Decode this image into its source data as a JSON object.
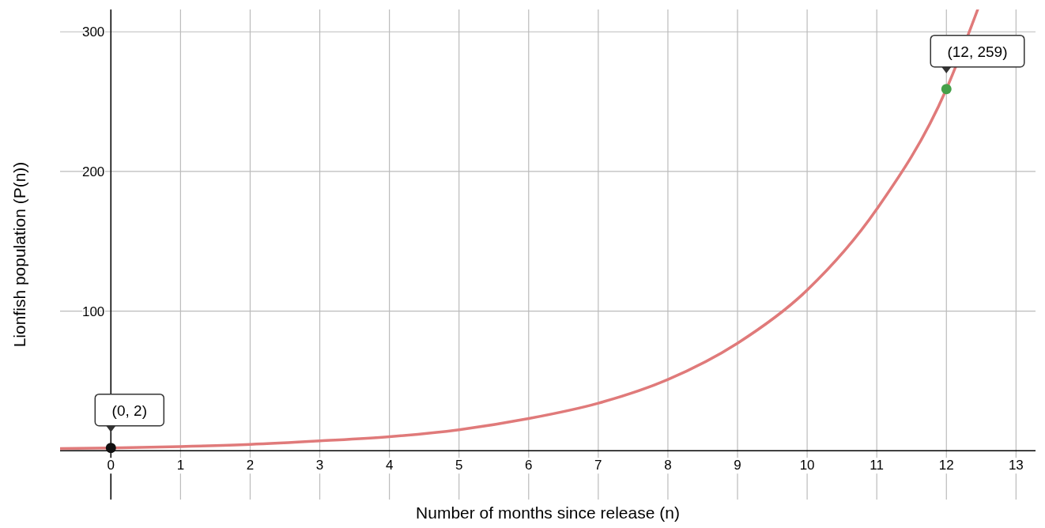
{
  "chart_data": {
    "type": "line",
    "xlabel": "Number of months since release (n)",
    "ylabel": "Lionfish population (P(n))",
    "xlim": [
      -0.73,
      13.28
    ],
    "ylim": [
      -35,
      316
    ],
    "xticks": [
      0,
      1,
      2,
      3,
      4,
      5,
      6,
      7,
      8,
      9,
      10,
      11,
      12,
      13
    ],
    "yticks": [
      100,
      200,
      300
    ],
    "grid": true,
    "series": [
      {
        "color": "#e07a7a",
        "x": [
          -0.73,
          0,
          1,
          2,
          3,
          4,
          5,
          6,
          7,
          8,
          9,
          10,
          11,
          12,
          12.45
        ],
        "values": [
          1.5,
          2,
          3,
          4.5,
          7,
          10,
          15,
          23,
          34,
          51,
          77,
          115,
          173,
          259,
          316
        ],
        "marker": "none",
        "line_style": "solid"
      },
      {
        "type": "scatter",
        "color": "#111111",
        "x": [
          0
        ],
        "values": [
          2
        ],
        "marker": "circle"
      },
      {
        "type": "scatter",
        "color": "#45a049",
        "x": [
          12
        ],
        "values": [
          259
        ],
        "marker": "circle"
      }
    ],
    "annotations": [
      {
        "text": "(0, 2)",
        "x": 0,
        "y": 2
      },
      {
        "text": "(12, 259)",
        "x": 12,
        "y": 259
      }
    ]
  }
}
